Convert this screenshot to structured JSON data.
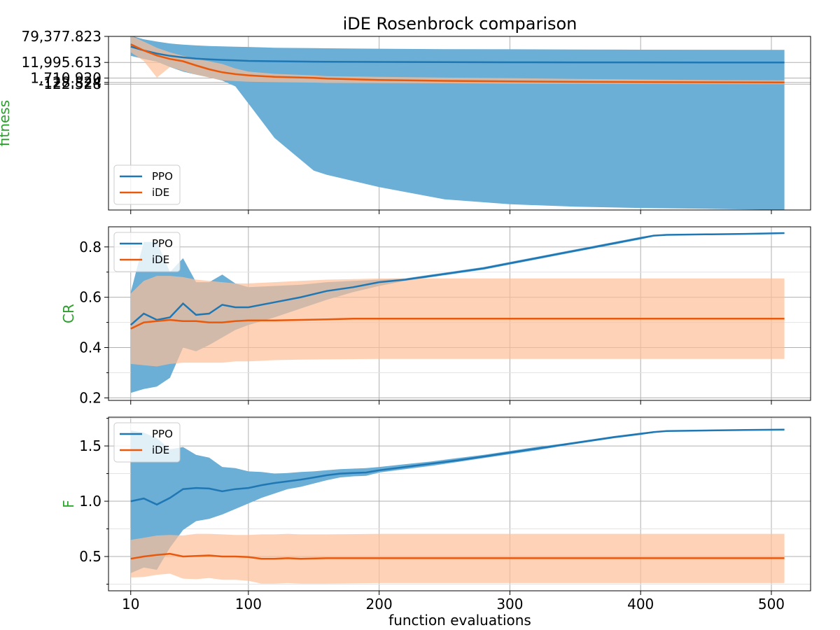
{
  "title": "iDE Rosenbrock comparison",
  "xlabel": "function evaluations",
  "label_color": "#2ca02c",
  "colors": {
    "PPO": "#1f77b4",
    "iDE": "#e8590c",
    "PPO_band": "#6baed6",
    "iDE_band": "#fdbf97"
  },
  "xlim": [
    -7,
    530
  ],
  "xticks": [
    10,
    100,
    200,
    300,
    400,
    500
  ],
  "xtick_labels": [
    "10",
    "100",
    "200",
    "300",
    "400",
    "500"
  ],
  "chart_data": [
    {
      "type": "line",
      "name": "fitness",
      "ylabel": "fitness",
      "ylim": [
        -8300,
        80000
      ],
      "yticks": [
        79377.823,
        11995.613,
        1710.92,
        128.824,
        -122.528
      ],
      "ytick_labels": [
        "79,377.823",
        "11,995.613",
        "1,710.920",
        "128.824",
        "-122.528"
      ],
      "legend": {
        "position": "lower-left",
        "entries": [
          "PPO",
          "iDE"
        ]
      },
      "series": [
        {
          "name": "PPO",
          "x": [
            10,
            20,
            30,
            40,
            50,
            60,
            70,
            80,
            90,
            100,
            120,
            150,
            160,
            200,
            250,
            300,
            350,
            400,
            450,
            510
          ],
          "y": [
            53000,
            43000,
            35000,
            29000,
            25000,
            22000,
            20000,
            18500,
            17500,
            16000,
            15000,
            14000,
            13800,
            13200,
            12700,
            12400,
            12200,
            12100,
            12050,
            12000
          ],
          "band_upper": [
            80000,
            72000,
            66000,
            61000,
            58000,
            56000,
            54500,
            53500,
            52500,
            52000,
            50000,
            49000,
            48500,
            47500,
            46500,
            46000,
            45500,
            45000,
            44800,
            44500
          ],
          "band_lower": [
            29000,
            21000,
            14000,
            9000,
            6000,
            4000,
            2200,
            800,
            -200,
            -800,
            -2000,
            -3500,
            -4000,
            -5500,
            -7000,
            -7600,
            -7900,
            -8050,
            -8150,
            -8300
          ]
        },
        {
          "name": "iDE",
          "x": [
            10,
            20,
            30,
            40,
            50,
            60,
            70,
            80,
            90,
            100,
            120,
            150,
            160,
            200,
            250,
            300,
            350,
            400,
            450,
            510
          ],
          "y": [
            59000,
            43000,
            30000,
            21000,
            15000,
            10000,
            7500,
            5500,
            4300,
            3500,
            2500,
            1800,
            1500,
            1000,
            700,
            500,
            350,
            250,
            180,
            129
          ],
          "band_upper": [
            80000,
            66000,
            50000,
            38000,
            29000,
            21000,
            15000,
            11000,
            8000,
            6000,
            4500,
            3500,
            3000,
            2500,
            2000,
            1700,
            1400,
            1200,
            1000,
            900
          ],
          "band_lower": [
            38000,
            16000,
            2000,
            9000,
            6500,
            4000,
            2000,
            900,
            600,
            400,
            200,
            100,
            50,
            20,
            0,
            -50,
            -80,
            -100,
            -110,
            -122
          ]
        }
      ]
    },
    {
      "type": "line",
      "name": "CR",
      "ylabel": "CR",
      "ylim": [
        0.19,
        0.88
      ],
      "yticks": [
        0.2,
        0.4,
        0.6,
        0.8
      ],
      "ytick_labels": [
        "0.2",
        "0.4",
        "0.6",
        "0.8"
      ],
      "legend": {
        "position": "upper-left",
        "entries": [
          "PPO",
          "iDE"
        ]
      },
      "series": [
        {
          "name": "PPO",
          "x": [
            10,
            20,
            30,
            40,
            50,
            60,
            70,
            80,
            90,
            100,
            120,
            140,
            160,
            180,
            200,
            220,
            240,
            260,
            280,
            300,
            320,
            340,
            360,
            380,
            400,
            410,
            420,
            450,
            480,
            510
          ],
          "y": [
            0.49,
            0.535,
            0.51,
            0.52,
            0.575,
            0.53,
            0.535,
            0.57,
            0.56,
            0.56,
            0.58,
            0.6,
            0.625,
            0.64,
            0.66,
            0.67,
            0.685,
            0.7,
            0.715,
            0.735,
            0.755,
            0.775,
            0.795,
            0.815,
            0.835,
            0.845,
            0.848,
            0.85,
            0.852,
            0.855
          ],
          "band_upper": [
            0.62,
            0.82,
            0.82,
            0.7,
            0.755,
            0.66,
            0.66,
            0.69,
            0.655,
            0.64,
            0.645,
            0.65,
            0.66,
            0.665,
            0.67,
            0.675,
            0.69,
            0.705,
            0.72,
            0.74,
            0.76,
            0.78,
            0.8,
            0.82,
            0.84,
            0.848,
            0.85,
            0.852,
            0.854,
            0.857
          ],
          "band_lower": [
            0.22,
            0.235,
            0.245,
            0.28,
            0.4,
            0.385,
            0.41,
            0.44,
            0.47,
            0.49,
            0.52,
            0.555,
            0.59,
            0.62,
            0.645,
            0.665,
            0.68,
            0.695,
            0.71,
            0.73,
            0.75,
            0.77,
            0.79,
            0.81,
            0.83,
            0.842,
            0.846,
            0.848,
            0.85,
            0.853
          ]
        },
        {
          "name": "iDE",
          "x": [
            10,
            20,
            30,
            40,
            50,
            60,
            70,
            80,
            90,
            100,
            120,
            140,
            160,
            180,
            200,
            250,
            300,
            350,
            400,
            450,
            510
          ],
          "y": [
            0.475,
            0.5,
            0.505,
            0.51,
            0.505,
            0.505,
            0.5,
            0.5,
            0.505,
            0.508,
            0.508,
            0.51,
            0.512,
            0.515,
            0.515,
            0.515,
            0.515,
            0.515,
            0.515,
            0.515,
            0.515
          ],
          "band_upper": [
            0.615,
            0.665,
            0.685,
            0.685,
            0.68,
            0.67,
            0.665,
            0.66,
            0.655,
            0.655,
            0.66,
            0.665,
            0.67,
            0.672,
            0.675,
            0.675,
            0.675,
            0.675,
            0.675,
            0.675,
            0.675
          ],
          "band_lower": [
            0.335,
            0.33,
            0.325,
            0.335,
            0.34,
            0.34,
            0.34,
            0.34,
            0.345,
            0.345,
            0.35,
            0.352,
            0.353,
            0.354,
            0.355,
            0.355,
            0.355,
            0.355,
            0.355,
            0.355,
            0.355
          ]
        }
      ]
    },
    {
      "type": "line",
      "name": "F",
      "ylabel": "F",
      "ylim": [
        0.19,
        1.76
      ],
      "yticks": [
        0.5,
        1.0,
        1.5
      ],
      "ytick_labels": [
        "0.5",
        "1.0",
        "1.5"
      ],
      "legend": {
        "position": "upper-left",
        "entries": [
          "PPO",
          "iDE"
        ]
      },
      "series": [
        {
          "name": "PPO",
          "x": [
            10,
            20,
            30,
            40,
            50,
            60,
            70,
            80,
            90,
            100,
            110,
            120,
            130,
            140,
            150,
            160,
            170,
            180,
            190,
            200,
            220,
            240,
            260,
            280,
            300,
            320,
            340,
            360,
            380,
            400,
            410,
            420,
            450,
            480,
            510
          ],
          "y": [
            1.0,
            1.025,
            0.97,
            1.03,
            1.11,
            1.12,
            1.115,
            1.09,
            1.11,
            1.12,
            1.145,
            1.165,
            1.18,
            1.195,
            1.215,
            1.235,
            1.25,
            1.255,
            1.26,
            1.28,
            1.31,
            1.34,
            1.37,
            1.405,
            1.44,
            1.475,
            1.51,
            1.545,
            1.58,
            1.61,
            1.625,
            1.635,
            1.64,
            1.645,
            1.648
          ],
          "band_upper": [
            1.64,
            1.62,
            1.57,
            1.47,
            1.49,
            1.42,
            1.395,
            1.31,
            1.3,
            1.27,
            1.265,
            1.25,
            1.255,
            1.265,
            1.27,
            1.28,
            1.29,
            1.295,
            1.3,
            1.31,
            1.335,
            1.36,
            1.39,
            1.42,
            1.455,
            1.49,
            1.52,
            1.555,
            1.59,
            1.62,
            1.632,
            1.638,
            1.643,
            1.648,
            1.652
          ],
          "band_lower": [
            0.35,
            0.4,
            0.38,
            0.58,
            0.74,
            0.82,
            0.84,
            0.88,
            0.93,
            0.98,
            1.03,
            1.07,
            1.11,
            1.13,
            1.16,
            1.19,
            1.215,
            1.225,
            1.23,
            1.26,
            1.29,
            1.32,
            1.355,
            1.39,
            1.425,
            1.46,
            1.5,
            1.535,
            1.57,
            1.6,
            1.618,
            1.632,
            1.637,
            1.642,
            1.645
          ]
        },
        {
          "name": "iDE",
          "x": [
            10,
            20,
            30,
            40,
            50,
            60,
            70,
            80,
            90,
            100,
            110,
            120,
            130,
            140,
            160,
            200,
            250,
            300,
            350,
            400,
            450,
            510
          ],
          "y": [
            0.48,
            0.5,
            0.515,
            0.525,
            0.5,
            0.505,
            0.51,
            0.5,
            0.5,
            0.495,
            0.48,
            0.48,
            0.485,
            0.48,
            0.485,
            0.485,
            0.485,
            0.485,
            0.485,
            0.485,
            0.485,
            0.485
          ],
          "band_upper": [
            0.65,
            0.67,
            0.69,
            0.695,
            0.69,
            0.705,
            0.705,
            0.7,
            0.695,
            0.695,
            0.7,
            0.7,
            0.705,
            0.7,
            0.7,
            0.705,
            0.705,
            0.705,
            0.705,
            0.705,
            0.705,
            0.705
          ],
          "band_lower": [
            0.31,
            0.315,
            0.335,
            0.345,
            0.3,
            0.295,
            0.305,
            0.29,
            0.29,
            0.28,
            0.255,
            0.255,
            0.26,
            0.255,
            0.255,
            0.26,
            0.26,
            0.26,
            0.26,
            0.26,
            0.26,
            0.26
          ]
        }
      ]
    }
  ]
}
